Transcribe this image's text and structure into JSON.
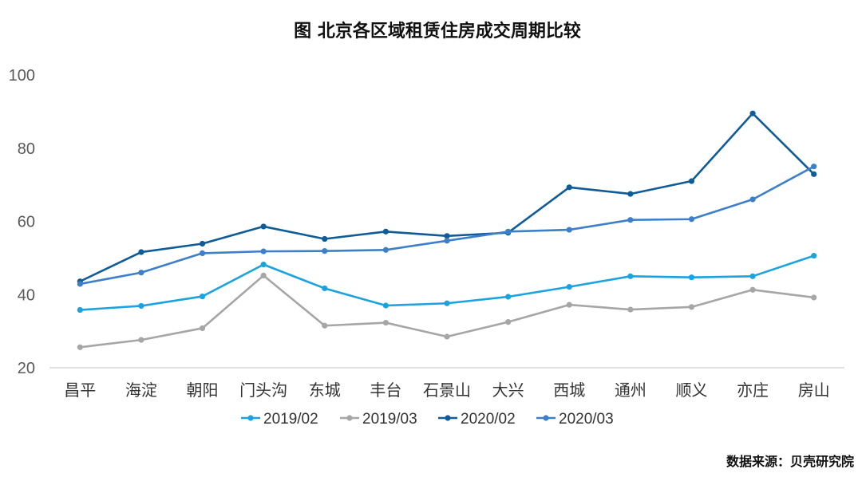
{
  "chart_data": {
    "type": "line",
    "title": "图 北京各区域租赁住房成交周期比较",
    "categories": [
      "昌平",
      "海淀",
      "朝阳",
      "门头沟",
      "东城",
      "丰台",
      "石景山",
      "大兴",
      "西城",
      "通州",
      "顺义",
      "亦庄",
      "房山"
    ],
    "ylim": [
      20,
      100
    ],
    "yticks": [
      20,
      40,
      60,
      80,
      100
    ],
    "grid": false,
    "legend_position": "bottom",
    "series": [
      {
        "name": "2019/02",
        "color": "#1aa3e0",
        "values": [
          35.8,
          36.9,
          39.5,
          48.2,
          41.7,
          37.0,
          37.6,
          39.4,
          42.1,
          45.0,
          44.7,
          45.0,
          50.6
        ]
      },
      {
        "name": "2019/03",
        "color": "#a6a6a6",
        "values": [
          25.6,
          27.6,
          30.8,
          45.2,
          31.5,
          32.3,
          28.5,
          32.5,
          37.2,
          35.9,
          36.6,
          41.3,
          39.2
        ]
      },
      {
        "name": "2020/02",
        "color": "#0f5c98",
        "values": [
          43.6,
          51.6,
          53.9,
          58.6,
          55.2,
          57.2,
          56.0,
          56.9,
          69.3,
          67.5,
          71.0,
          89.5,
          72.9
        ]
      },
      {
        "name": "2020/03",
        "color": "#3d7fc9",
        "values": [
          42.9,
          46.0,
          51.3,
          51.8,
          51.9,
          52.2,
          54.7,
          57.2,
          57.7,
          60.4,
          60.6,
          66.0,
          75.0
        ]
      }
    ]
  },
  "source": "数据来源：贝壳研究院"
}
